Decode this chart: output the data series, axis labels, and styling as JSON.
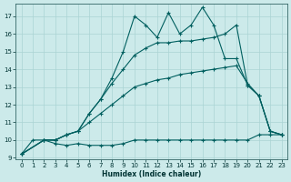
{
  "xlabel": "Humidex (Indice chaleur)",
  "bg_color": "#cceaea",
  "grid_color": "#aad4d4",
  "line_color": "#005f5f",
  "xlim": [
    -0.5,
    23.5
  ],
  "ylim": [
    8.9,
    17.7
  ],
  "yticks": [
    9,
    10,
    11,
    12,
    13,
    14,
    15,
    16,
    17
  ],
  "xticks": [
    0,
    1,
    2,
    3,
    4,
    5,
    6,
    7,
    8,
    9,
    10,
    11,
    12,
    13,
    14,
    15,
    16,
    17,
    18,
    19,
    20,
    21,
    22,
    23
  ],
  "lines": [
    {
      "x": [
        0,
        1,
        2,
        3,
        4,
        5,
        6,
        7,
        8,
        9,
        10,
        11,
        12,
        13,
        14,
        15,
        16,
        17,
        18,
        19,
        20,
        21,
        22,
        23
      ],
      "y": [
        9.2,
        10.0,
        10.0,
        9.8,
        9.7,
        9.8,
        9.7,
        9.7,
        9.7,
        9.8,
        10.0,
        10.0,
        10.0,
        10.0,
        10.0,
        10.0,
        10.0,
        10.0,
        10.0,
        10.0,
        10.0,
        10.3,
        10.3,
        10.3
      ]
    },
    {
      "x": [
        0,
        2,
        3,
        4,
        5,
        6,
        7,
        8,
        9,
        10,
        11,
        12,
        13,
        14,
        15,
        16,
        17,
        18,
        19,
        20,
        21,
        22,
        23
      ],
      "y": [
        9.2,
        10.0,
        10.0,
        10.3,
        10.5,
        11.0,
        11.5,
        12.0,
        12.5,
        13.0,
        13.2,
        13.4,
        13.5,
        13.7,
        13.8,
        13.9,
        14.0,
        14.1,
        14.2,
        13.2,
        12.5,
        10.5,
        10.3
      ]
    },
    {
      "x": [
        0,
        2,
        3,
        4,
        5,
        6,
        7,
        8,
        9,
        10,
        11,
        12,
        13,
        14,
        15,
        16,
        17,
        18,
        19,
        20,
        21,
        22,
        23
      ],
      "y": [
        9.2,
        10.0,
        10.0,
        10.3,
        10.5,
        11.5,
        12.3,
        13.2,
        14.0,
        14.8,
        15.2,
        15.5,
        15.5,
        15.6,
        15.6,
        15.7,
        15.8,
        16.0,
        16.5,
        13.1,
        12.5,
        10.5,
        10.3
      ]
    },
    {
      "x": [
        0,
        2,
        3,
        4,
        5,
        6,
        7,
        8,
        9,
        10,
        11,
        12,
        13,
        14,
        15,
        16,
        17,
        18,
        19,
        20,
        21,
        22,
        23
      ],
      "y": [
        9.2,
        10.0,
        10.0,
        10.3,
        10.5,
        11.5,
        12.3,
        13.5,
        15.0,
        17.0,
        16.5,
        15.8,
        17.2,
        16.0,
        16.5,
        17.5,
        16.5,
        14.6,
        14.6,
        13.1,
        12.5,
        10.5,
        10.3
      ]
    }
  ]
}
